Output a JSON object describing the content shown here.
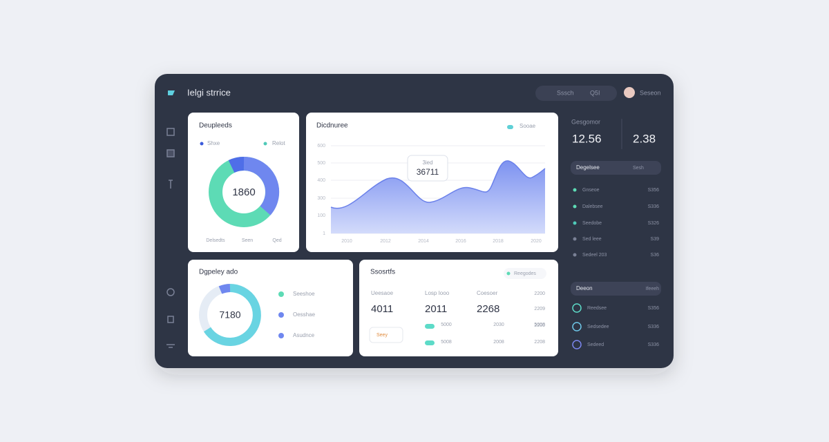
{
  "header": {
    "title": "Ielgi strrice",
    "search": "Sssch",
    "search_hint": "Q5I",
    "user": "Seseon"
  },
  "card_share": {
    "title": "Deupleeds",
    "legend": [
      "Shxe",
      "Relot"
    ],
    "center": "1860",
    "footer": [
      "Delsedts",
      "Seen",
      "Qed"
    ]
  },
  "card_trend": {
    "title": "Dicdnuree",
    "legend": "Sooae",
    "y_labels": [
      "600",
      "500",
      "400",
      "300",
      "100",
      "1"
    ],
    "x_labels": [
      "2010",
      "2012",
      "2014",
      "2016",
      "2018",
      "2020"
    ],
    "tooltip": {
      "label": "3ied",
      "value": "36711"
    }
  },
  "card_display": {
    "title": "Dgpeley ado",
    "center": "7180",
    "items": [
      "Seeshoe",
      "Oesshae",
      "Asudnce"
    ]
  },
  "card_sports": {
    "title": "Ssosrtfs",
    "tag": "Reegodes",
    "stats": [
      {
        "label": "Ueesaoe",
        "value": "4011"
      },
      {
        "label": "Losp Iooo",
        "value": "2011"
      },
      {
        "label": "Coesoer",
        "value": "2268"
      }
    ],
    "side": [
      "2200",
      "2209",
      "2200"
    ],
    "button": "Seey",
    "rows": [
      [
        "5000",
        "2030",
        "5008"
      ],
      [
        "5008",
        "2008",
        "2208"
      ]
    ]
  },
  "side_panel": {
    "title": "Gesgomor",
    "stats": [
      "12.56",
      "2.38"
    ],
    "filter": {
      "label": "Degelsee",
      "action": "Sesh"
    },
    "list": [
      {
        "name": "Gnseoe",
        "value": "S356"
      },
      {
        "name": "Dalebsee",
        "value": "S336"
      },
      {
        "name": "Seedobe",
        "value": "S326"
      },
      {
        "name": "Sed leee",
        "value": "S39"
      },
      {
        "name": "Sedeel 203",
        "value": "S36"
      }
    ],
    "group": {
      "label": "Deeon",
      "action": "Ifeeeh"
    },
    "accounts": [
      {
        "name": "Reedsee",
        "value": "S356"
      },
      {
        "name": "Sedsedee",
        "value": "S336"
      },
      {
        "name": "Sedeed",
        "value": "S336"
      }
    ]
  }
}
